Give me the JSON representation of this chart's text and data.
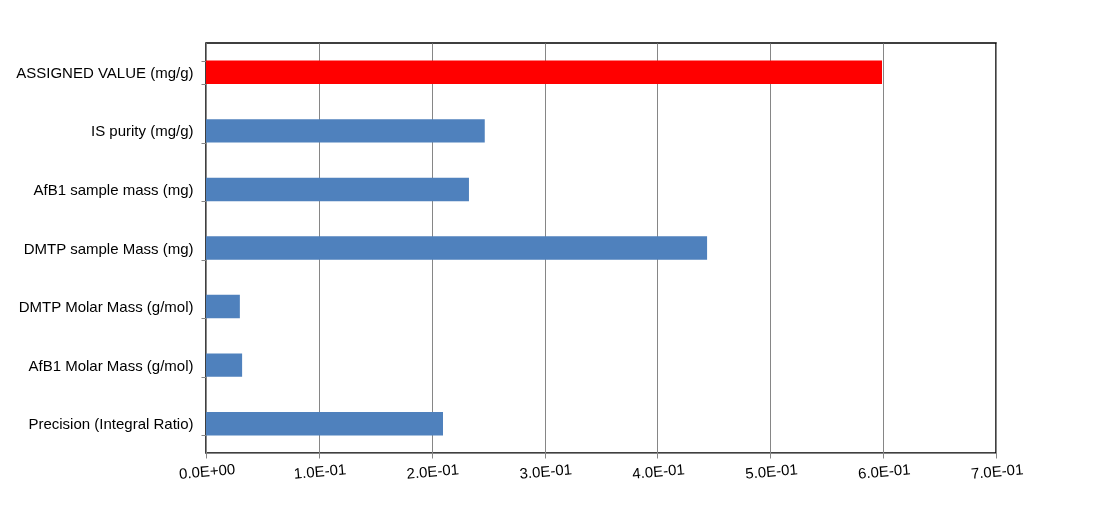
{
  "chart_data": {
    "type": "bar",
    "orientation": "horizontal",
    "categories": [
      "ASSIGNED VALUE (mg/g)",
      "IS purity (mg/g)",
      "AfB1 sample mass (mg)",
      "DMTP sample Mass (mg)",
      "DMTP Molar Mass (g/mol)",
      "AfB1 Molar Mass (g/mol)",
      "Precision (Integral Ratio)"
    ],
    "values": [
      0.599,
      0.247,
      0.233,
      0.444,
      0.03,
      0.032,
      0.21
    ],
    "colors": [
      "#ff0000",
      "#4f81bd",
      "#4f81bd",
      "#4f81bd",
      "#4f81bd",
      "#4f81bd",
      "#4f81bd"
    ],
    "xlim": [
      0,
      0.7
    ],
    "xticks": [
      {
        "value": 0,
        "label": "0.0E+00"
      },
      {
        "value": 0.1,
        "label": "1.0E-01"
      },
      {
        "value": 0.2,
        "label": "2.0E-01"
      },
      {
        "value": 0.3,
        "label": "3.0E-01"
      },
      {
        "value": 0.4,
        "label": "4.0E-01"
      },
      {
        "value": 0.5,
        "label": "5.0E-01"
      },
      {
        "value": 0.6,
        "label": "6.0E-01"
      },
      {
        "value": 0.7,
        "label": "7.0E-01"
      }
    ],
    "grid": "x"
  }
}
